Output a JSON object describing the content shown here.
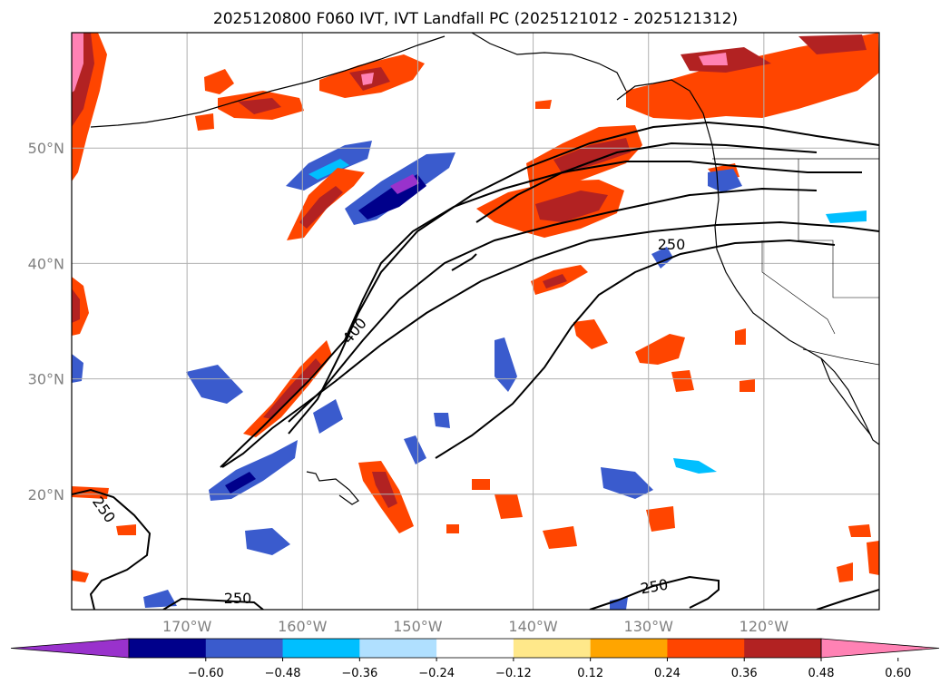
{
  "title": "2025120800 F060 IVT, IVT Landfall PC (2025121012 - 2025121312)",
  "map": {
    "projection": "PlateCarree",
    "lon_range": [
      -180,
      -110
    ],
    "lat_range": [
      10,
      60
    ],
    "lat_labels": [
      "50°N",
      "40°N",
      "30°N",
      "20°N"
    ],
    "lat_values": [
      50,
      40,
      30,
      20
    ],
    "lon_labels": [
      "170°W",
      "160°W",
      "150°W",
      "140°W",
      "130°W",
      "120°W"
    ],
    "lon_values": [
      -170,
      -160,
      -150,
      -140,
      -130,
      -120
    ],
    "contour_labels": [
      "400",
      "250",
      "250",
      "250",
      "250"
    ],
    "coast_color": "#000000"
  },
  "colorbar": {
    "tick_labels": [
      "−0.60",
      "−0.48",
      "−0.36",
      "−0.24",
      "−0.12",
      "0.12",
      "0.24",
      "0.36",
      "0.48",
      "0.60"
    ],
    "tick_values": [
      -0.6,
      -0.48,
      -0.36,
      -0.24,
      -0.12,
      0.12,
      0.24,
      0.36,
      0.48,
      0.6
    ],
    "colors": [
      "#9932cc",
      "#00008b",
      "#3a5bcd",
      "#00bfff",
      "#b0e0ff",
      "#ffffff",
      "#ffe88a",
      "#ffa500",
      "#ff4500",
      "#b22222",
      "#ff82b4"
    ]
  }
}
